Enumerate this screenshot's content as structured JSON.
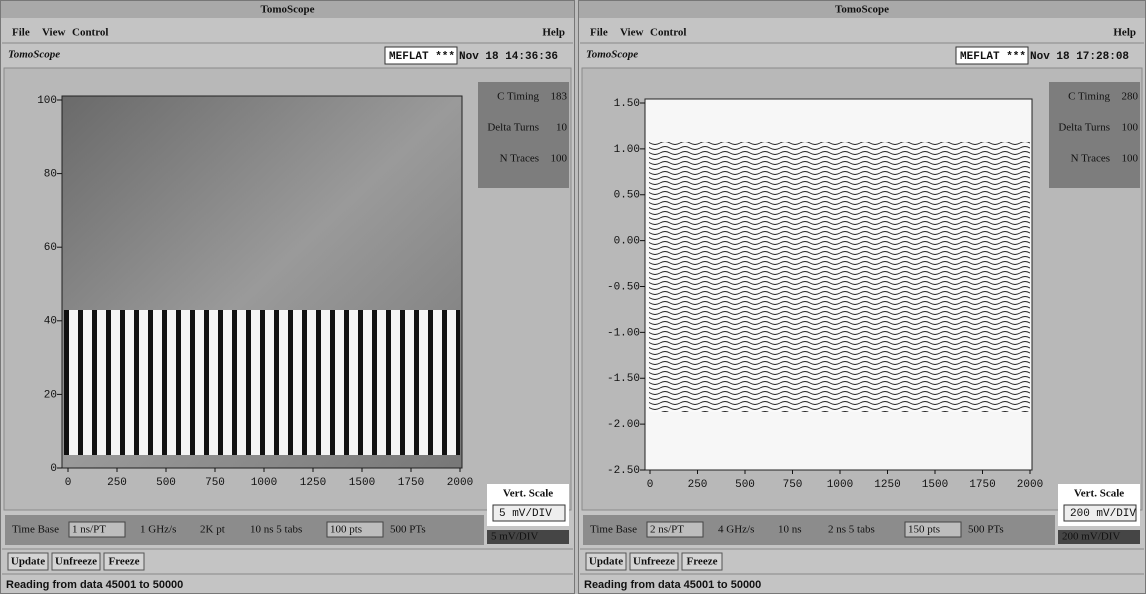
{
  "windows": [
    {
      "title": "TomoScope",
      "menu": [
        "File",
        "View",
        "Control"
      ],
      "help": "Help",
      "app_label": "TomoScope",
      "mode": "MEFLAT ***",
      "timestamp": "Nov 18 14:36:36",
      "info": [
        {
          "label": "C Timing",
          "value": "183"
        },
        {
          "label": "Delta Turns",
          "value": "10"
        },
        {
          "label": "N Traces",
          "value": "100"
        }
      ],
      "vert_scale": {
        "label": "Vert. Scale",
        "value": "5 mV/DIV"
      },
      "controls": [
        "Time Base",
        "1 ns/PT",
        "1 GHz/s",
        "2K pt",
        "10 ns 5 tabs",
        "100 pts",
        "500 PTs"
      ],
      "readout": "5 mV/DIV",
      "buttons": [
        "Update",
        "Unfreeze",
        "Freeze"
      ],
      "status": "Reading from data 45001 to 50000",
      "plot": {
        "xlim": [
          0,
          2000
        ],
        "ylim": [
          0,
          100
        ],
        "xticks": [
          0,
          250,
          500,
          750,
          1000,
          1250,
          1500,
          1750,
          2000
        ],
        "yticks": [
          0,
          20,
          40,
          60,
          80,
          100
        ]
      }
    },
    {
      "title": "TomoScope",
      "menu": [
        "File",
        "View",
        "Control"
      ],
      "help": "Help",
      "app_label": "TomoScope",
      "mode": "MEFLAT ***",
      "timestamp": "Nov 18 17:28:08",
      "info": [
        {
          "label": "C Timing",
          "value": "280"
        },
        {
          "label": "Delta Turns",
          "value": "100"
        },
        {
          "label": "N Traces",
          "value": "100"
        }
      ],
      "vert_scale": {
        "label": "Vert. Scale",
        "value": "200 mV/DIV"
      },
      "controls": [
        "Time Base",
        "2 ns/PT",
        "4 GHz/s",
        "10 ns",
        "2 ns 5 tabs",
        "150 pts",
        "500 PTs"
      ],
      "readout": "200 mV/DIV",
      "buttons": [
        "Update",
        "Unfreeze",
        "Freeze"
      ],
      "status": "Reading from data 45001 to 50000",
      "plot": {
        "xlim": [
          0,
          2000
        ],
        "ylim": [
          -2.5,
          1.5
        ],
        "xticks": [
          0,
          250,
          500,
          750,
          1000,
          1250,
          1500,
          1750,
          2000
        ],
        "yticks": [
          {
            "value": -2.5,
            "label": "-2.50"
          },
          {
            "value": -2,
            "label": "-2.00"
          },
          {
            "value": -1.5,
            "label": "-1.50"
          },
          {
            "value": -1,
            "label": "-1.00"
          },
          {
            "value": -0.5,
            "label": "-0.50"
          },
          {
            "value": 0,
            "label": "0.00"
          },
          {
            "value": 0.5,
            "label": "0.50"
          },
          {
            "value": 1,
            "label": "1.00"
          },
          {
            "value": 1.5,
            "label": "1.50"
          }
        ]
      }
    }
  ]
}
